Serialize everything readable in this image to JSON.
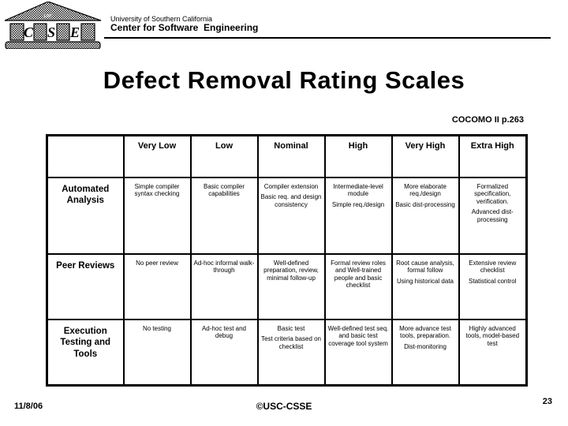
{
  "colors": {
    "text": "#000000",
    "background": "#ffffff"
  },
  "logo": {
    "letters": [
      "C",
      "S",
      "E"
    ],
    "roof_text": "USC"
  },
  "header": {
    "university": "University of Southern California",
    "center": "Center for Software  Engineering"
  },
  "title": "Defect Removal Rating Scales",
  "reference": "COCOMO II p.263",
  "table": {
    "columns": [
      "",
      "Very Low",
      "Low",
      "Nominal",
      "High",
      "Very High",
      "Extra High"
    ],
    "rows": [
      {
        "label": "Automated Analysis",
        "cells": [
          [
            "Simple compiler syntax checking"
          ],
          [
            "Basic compiler capabilities"
          ],
          [
            "Compiler extension",
            "Basic req. and design consistency"
          ],
          [
            "Intermediate-level module",
            "Simple req./design"
          ],
          [
            "More elaborate req./design",
            "Basic dist-processing"
          ],
          [
            "Formalized specification, verification.",
            "Advanced dist-processing"
          ]
        ]
      },
      {
        "label": "Peer Reviews",
        "cells": [
          [
            "No peer review"
          ],
          [
            "Ad-hoc informal walk-through"
          ],
          [
            "Well-defined preparation, review, minimal follow-up"
          ],
          [
            "Formal review roles and Well-trained people and basic checklist"
          ],
          [
            "Root cause analysis, formal follow",
            "Using historical data"
          ],
          [
            "Extensive review checklist",
            "Statistical control"
          ]
        ]
      },
      {
        "label": "Execution Testing and Tools",
        "cells": [
          [
            "No testing"
          ],
          [
            "Ad-hoc test and debug"
          ],
          [
            "Basic test",
            "Test criteria based on checklist"
          ],
          [
            "Well-defined test seq. and basic test coverage tool system"
          ],
          [
            "More advance test tools, preparation.",
            "Dist-monitoring"
          ],
          [
            "Highly advanced tools, model-based test"
          ]
        ]
      }
    ]
  },
  "footer": {
    "date": "11/8/06",
    "copyright": "©USC-CSSE",
    "page": "23"
  }
}
